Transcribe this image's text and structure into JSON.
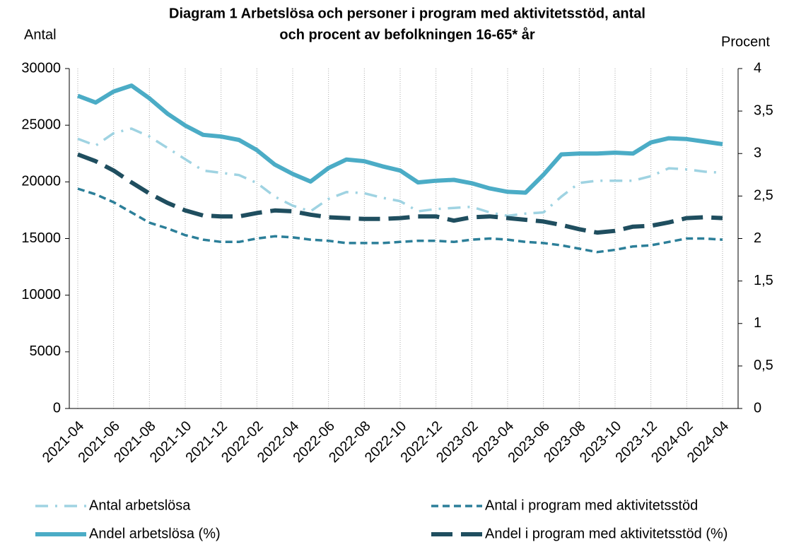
{
  "chart_data": {
    "type": "line",
    "title": [
      "Diagram 1 Arbetslösa och personer i program med aktivitetsstöd, antal",
      "och procent av befolkningen 16-65* år"
    ],
    "y_label": "Antal",
    "y2_label": "Procent",
    "categories": [
      "2021-04",
      null,
      "2021-06",
      null,
      "2021-08",
      null,
      "2021-10",
      null,
      "2021-12",
      null,
      "2022-02",
      null,
      "2022-04",
      null,
      "2022-06",
      null,
      "2022-08",
      null,
      "2022-10",
      null,
      "2022-12",
      null,
      "2023-02",
      null,
      "2023-04",
      null,
      "2023-06",
      null,
      "2023-08",
      null,
      "2023-10",
      null,
      "2023-12",
      null,
      "2024-02",
      null,
      "2024-04"
    ],
    "series": [
      {
        "name": "Antal arbetslösa",
        "color": "#9fd3e2",
        "linestyle": "dashdot",
        "axis": "y",
        "values": [
          23800,
          23200,
          24300,
          24700,
          24000,
          23000,
          22000,
          21000,
          20800,
          20600,
          19900,
          18700,
          17900,
          17400,
          18500,
          19100,
          19000,
          18600,
          18300,
          17400,
          17600,
          17700,
          17800,
          17300,
          17000,
          17200,
          17300,
          18700,
          19900,
          20100,
          20100,
          20100,
          20500,
          21200,
          21100,
          20900,
          20800
        ]
      },
      {
        "name": "Antal i program med aktivitetsstöd",
        "color": "#2c7f99",
        "linestyle": "dashed",
        "axis": "y",
        "values": [
          19400,
          18900,
          18200,
          17300,
          16400,
          15900,
          15300,
          14900,
          14700,
          14700,
          15000,
          15200,
          15100,
          14900,
          14800,
          14600,
          14600,
          14600,
          14700,
          14800,
          14800,
          14700,
          14900,
          15000,
          14900,
          14700,
          14600,
          14400,
          14100,
          13800,
          14000,
          14300,
          14400,
          14700,
          15000,
          15000,
          14900
        ]
      },
      {
        "name": "Andel arbetslösa (%)",
        "color": "#4bacc6",
        "linestyle": "solid",
        "axis": "y2",
        "values": [
          3.68,
          3.6,
          3.73,
          3.8,
          3.65,
          3.47,
          3.33,
          3.22,
          3.2,
          3.16,
          3.04,
          2.87,
          2.76,
          2.67,
          2.83,
          2.93,
          2.91,
          2.85,
          2.8,
          2.66,
          2.68,
          2.69,
          2.65,
          2.59,
          2.55,
          2.54,
          2.75,
          2.99,
          3.0,
          3.0,
          3.01,
          3.0,
          3.13,
          3.18,
          3.17,
          3.14,
          3.11
        ]
      },
      {
        "name": "Andel i program med aktivitetsstöd (%)",
        "color": "#1f4e5f",
        "linestyle": "longdash",
        "axis": "y2",
        "values": [
          2.99,
          2.91,
          2.8,
          2.66,
          2.53,
          2.42,
          2.33,
          2.27,
          2.26,
          2.26,
          2.3,
          2.33,
          2.32,
          2.28,
          2.25,
          2.24,
          2.23,
          2.23,
          2.24,
          2.26,
          2.26,
          2.21,
          2.25,
          2.26,
          2.24,
          2.22,
          2.2,
          2.16,
          2.11,
          2.07,
          2.09,
          2.14,
          2.15,
          2.19,
          2.24,
          2.25,
          2.24
        ]
      }
    ],
    "ylim": [
      0,
      30000
    ],
    "yticks": [
      0,
      5000,
      10000,
      15000,
      20000,
      25000,
      30000
    ],
    "y2lim": [
      0,
      4
    ],
    "y2ticks": [
      0,
      {
        "value": 0.5,
        "label": "0,5"
      },
      1,
      {
        "value": 1.5,
        "label": "1,5"
      },
      2,
      {
        "value": 2.5,
        "label": "2,5"
      },
      3,
      {
        "value": 3.5,
        "label": "3,5"
      },
      4
    ],
    "grid": "x"
  }
}
